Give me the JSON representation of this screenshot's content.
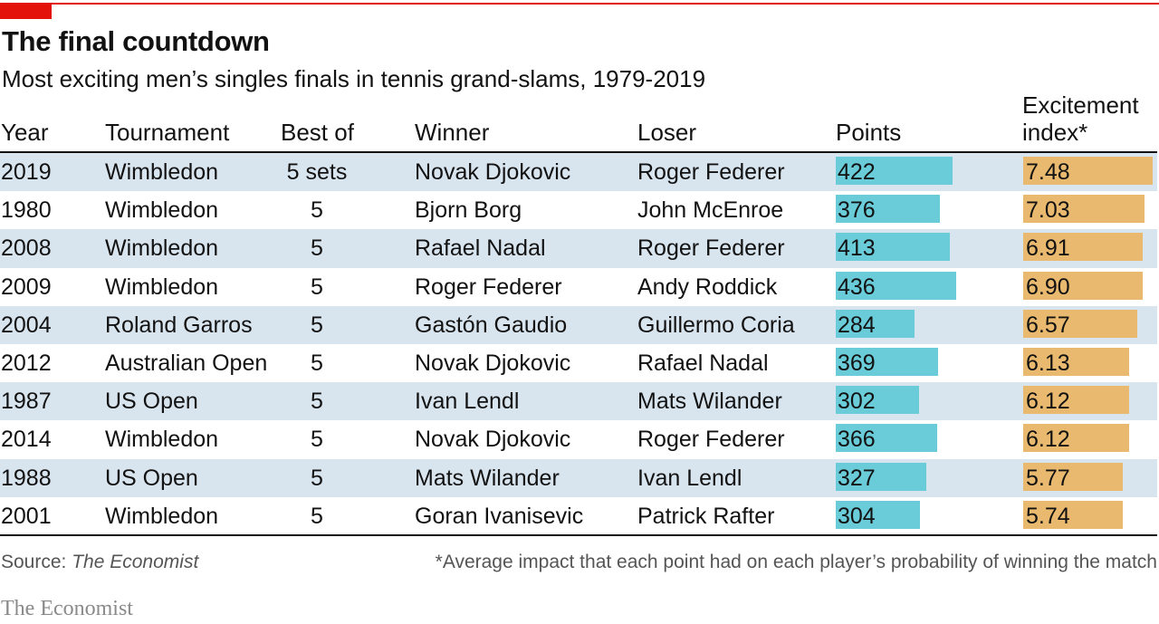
{
  "colors": {
    "accent": "#e3120b",
    "points_bar": "#6acbd9",
    "index_bar": "#e8b96e",
    "shade": "#d8e4ee"
  },
  "title": "The final countdown",
  "subtitle": "Most exciting men’s singles finals in tennis grand-slams, 1979-2019",
  "headers": {
    "year": "Year",
    "tournament": "Tournament",
    "best_of": "Best of",
    "winner": "Winner",
    "loser": "Loser",
    "points": "Points",
    "index_line1": "Excitement",
    "index_line2": "index*"
  },
  "chart_data": {
    "type": "table",
    "points_scale_max": 436,
    "index_scale_max": 7.48,
    "rows": [
      {
        "year": "2019",
        "tournament": "Wimbledon",
        "best_of": "5 sets",
        "winner": "Novak Djokovic",
        "loser": "Roger Federer",
        "points": 422,
        "index": "7.48"
      },
      {
        "year": "1980",
        "tournament": "Wimbledon",
        "best_of": "5",
        "winner": "Bjorn Borg",
        "loser": "John McEnroe",
        "points": 376,
        "index": "7.03"
      },
      {
        "year": "2008",
        "tournament": "Wimbledon",
        "best_of": "5",
        "winner": "Rafael Nadal",
        "loser": "Roger Federer",
        "points": 413,
        "index": "6.91"
      },
      {
        "year": "2009",
        "tournament": "Wimbledon",
        "best_of": "5",
        "winner": "Roger Federer",
        "loser": "Andy Roddick",
        "points": 436,
        "index": "6.90"
      },
      {
        "year": "2004",
        "tournament": "Roland Garros",
        "best_of": "5",
        "winner": "Gastón Gaudio",
        "loser": "Guillermo Coria",
        "points": 284,
        "index": "6.57"
      },
      {
        "year": "2012",
        "tournament": "Australian Open",
        "best_of": "5",
        "winner": "Novak Djokovic",
        "loser": "Rafael Nadal",
        "points": 369,
        "index": "6.13"
      },
      {
        "year": "1987",
        "tournament": "US Open",
        "best_of": "5",
        "winner": "Ivan Lendl",
        "loser": "Mats Wilander",
        "points": 302,
        "index": "6.12"
      },
      {
        "year": "2014",
        "tournament": "Wimbledon",
        "best_of": "5",
        "winner": "Novak Djokovic",
        "loser": "Roger Federer",
        "points": 366,
        "index": "6.12"
      },
      {
        "year": "1988",
        "tournament": "US Open",
        "best_of": "5",
        "winner": "Mats Wilander",
        "loser": "Ivan Lendl",
        "points": 327,
        "index": "5.77"
      },
      {
        "year": "2001",
        "tournament": "Wimbledon",
        "best_of": "5",
        "winner": "Goran Ivanisevic",
        "loser": "Patrick Rafter",
        "points": 304,
        "index": "5.74"
      }
    ]
  },
  "source": {
    "label": "Source: ",
    "name": "The Economist"
  },
  "footnote": "*Average impact that each point had on each player’s probability of winning the match",
  "brand": "The Economist"
}
